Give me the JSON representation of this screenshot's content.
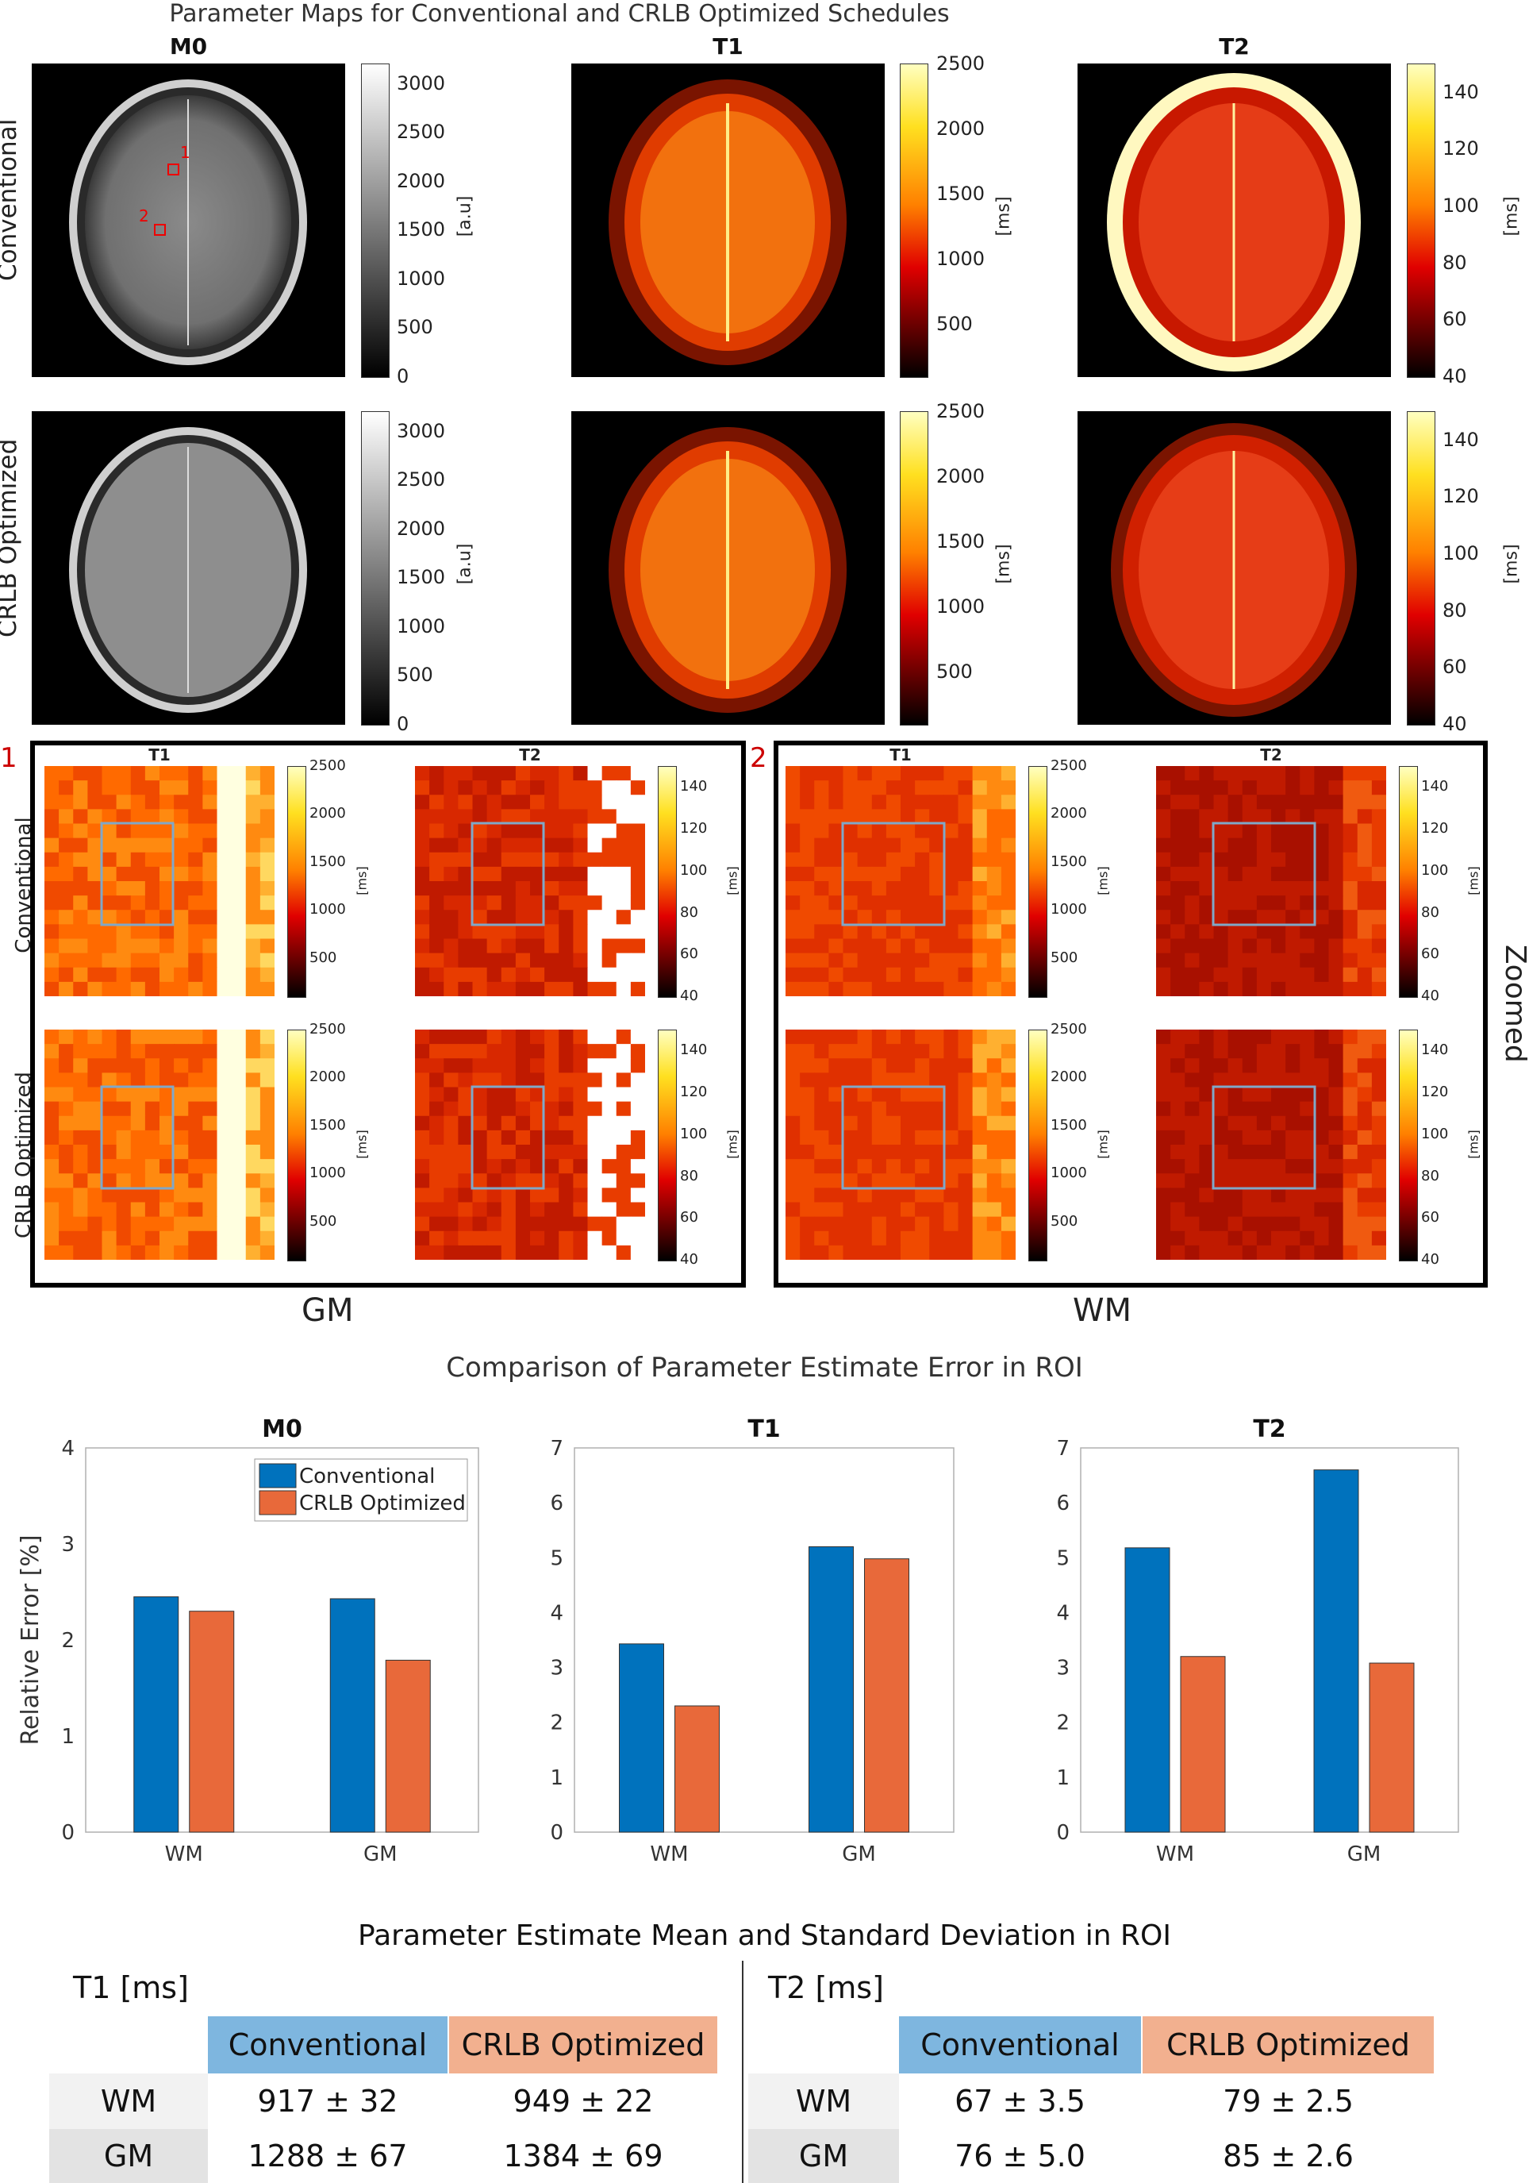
{
  "figure_title": "Parameter Maps for Conventional and CRLB Optimized Schedules",
  "map_titles": [
    "M0",
    "T1",
    "T2"
  ],
  "row_labels": [
    "Conventional",
    "CRLB Optimized"
  ],
  "colorbars": {
    "m0": {
      "ticks": [
        "3000",
        "2500",
        "2000",
        "1500",
        "1000",
        "500",
        "0"
      ],
      "unit": "[a.u]"
    },
    "t1": {
      "ticks": [
        "2500",
        "2000",
        "1500",
        "1000",
        "500"
      ],
      "unit": "[ms]"
    },
    "t2": {
      "ticks": [
        "140",
        "120",
        "100",
        "80",
        "60",
        "40"
      ],
      "unit": "[ms]"
    }
  },
  "roi_markers": [
    "1",
    "2"
  ],
  "zoom": {
    "side_label": "Zoomed",
    "panel_numbers": [
      "1",
      "2"
    ],
    "panel_titles": [
      "T1",
      "T2"
    ],
    "region_labels": [
      "GM",
      "WM"
    ]
  },
  "bar_section_title": "Comparison of Parameter Estimate Error in ROI",
  "table": {
    "title": "Parameter Estimate Mean and Standard Deviation in ROI",
    "t1_header": "T1 [ms]",
    "t2_header": "T2 [ms]",
    "col_conv": "Conventional",
    "col_crlb": "CRLB Optimized",
    "rows": [
      {
        "label": "WM",
        "t1_conv": "917 ± 32",
        "t1_crlb": "949 ± 22",
        "t2_conv": "67 ± 3.5",
        "t2_crlb": "79 ± 2.5"
      },
      {
        "label": "GM",
        "t1_conv": "1288 ± 67",
        "t1_crlb": "1384 ± 69",
        "t2_conv": "76 ± 5.0",
        "t2_crlb": "85 ± 2.6"
      }
    ]
  },
  "colors": {
    "conventional": "#0072bd",
    "crlb": "#e8693a",
    "conv_cell": "#7eb6df",
    "crlb_cell": "#f2b08f"
  },
  "chart_data": [
    {
      "type": "bar",
      "title": "M0",
      "categories": [
        "WM",
        "GM"
      ],
      "ylabel": "Relative Error [%]",
      "ylim": [
        0,
        4
      ],
      "yticks": [
        "0",
        "1",
        "2",
        "3",
        "4"
      ],
      "series": [
        {
          "name": "Conventional",
          "values": [
            2.45,
            2.43
          ]
        },
        {
          "name": "CRLB Optimized",
          "values": [
            2.3,
            1.79
          ]
        }
      ],
      "legend": [
        "Conventional",
        "CRLB Optimized"
      ],
      "legend_position": "top-right"
    },
    {
      "type": "bar",
      "title": "T1",
      "categories": [
        "WM",
        "GM"
      ],
      "ylabel": "",
      "ylim": [
        0,
        7
      ],
      "yticks": [
        "0",
        "1",
        "2",
        "3",
        "4",
        "5",
        "6",
        "7"
      ],
      "series": [
        {
          "name": "Conventional",
          "values": [
            3.43,
            5.2
          ]
        },
        {
          "name": "CRLB Optimized",
          "values": [
            2.3,
            4.98
          ]
        }
      ]
    },
    {
      "type": "bar",
      "title": "T2",
      "categories": [
        "WM",
        "GM"
      ],
      "ylabel": "",
      "ylim": [
        0,
        7
      ],
      "yticks": [
        "0",
        "1",
        "2",
        "3",
        "4",
        "5",
        "6",
        "7"
      ],
      "series": [
        {
          "name": "Conventional",
          "values": [
            5.18,
            6.6
          ]
        },
        {
          "name": "CRLB Optimized",
          "values": [
            3.2,
            3.08
          ]
        }
      ]
    }
  ]
}
